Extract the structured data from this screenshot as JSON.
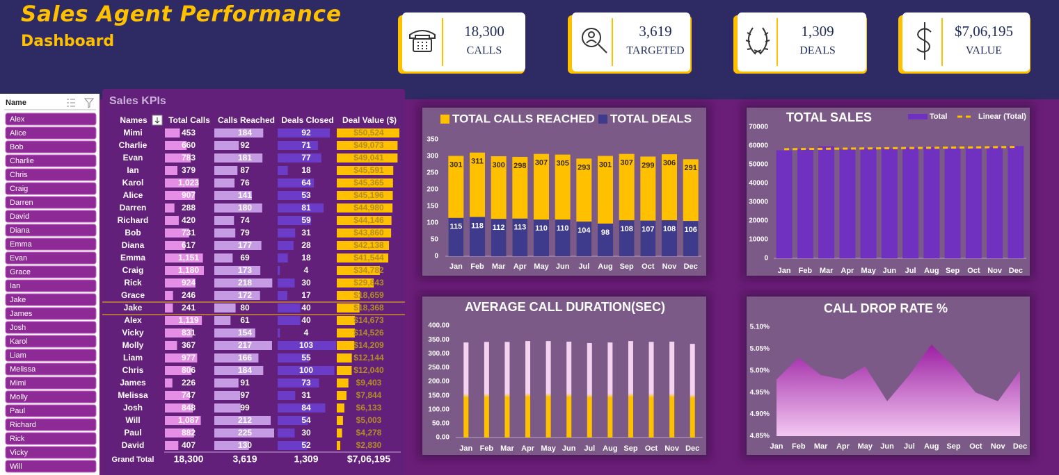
{
  "header": {
    "title": "Sales Agent Performance",
    "subtitle": "Dashboard"
  },
  "kpis": [
    {
      "value": "18,300",
      "label": "CALLS"
    },
    {
      "value": "3,619",
      "label": "TARGETED"
    },
    {
      "value": "1,309",
      "label": "DEALS"
    },
    {
      "value": "$7,06,195",
      "label": "VALUE"
    }
  ],
  "slicer": {
    "title": "Name",
    "items": [
      "Alex",
      "Alice",
      "Bob",
      "Charlie",
      "Chris",
      "Craig",
      "Darren",
      "David",
      "Diana",
      "Emma",
      "Evan",
      "Grace",
      "Ian",
      "Jake",
      "James",
      "Josh",
      "Karol",
      "Liam",
      "Melissa",
      "Mimi",
      "Molly",
      "Paul",
      "Richard",
      "Rick",
      "Vicky",
      "Will"
    ]
  },
  "table": {
    "title": "Sales KPIs",
    "columns": [
      "Names",
      "Total Calls",
      "Calls Reached",
      "Deals Closed",
      "Deal Value ($)"
    ],
    "bar_colors": [
      "#e58ee6",
      "#c59be3",
      "#6b3cc8",
      "#ffc000"
    ],
    "rows": [
      [
        "Mimi",
        453,
        184,
        92,
        {
          "value": 50524,
          "label": "$50,524"
        }
      ],
      [
        "Charlie",
        660,
        92,
        71,
        {
          "value": 49073,
          "label": "$49,073"
        }
      ],
      [
        "Evan",
        783,
        181,
        77,
        {
          "value": 49041,
          "label": "$49,041"
        }
      ],
      [
        "Ian",
        379,
        87,
        18,
        {
          "value": 45591,
          "label": "$45,591"
        }
      ],
      [
        "Karol",
        {
          "value": 1023,
          "label": "1,023"
        },
        76,
        64,
        {
          "value": 45365,
          "label": "$45,365"
        }
      ],
      [
        "Alice",
        907,
        141,
        53,
        {
          "value": 45196,
          "label": "$45,196"
        }
      ],
      [
        "Darren",
        288,
        180,
        81,
        {
          "value": 44980,
          "label": "$44,980"
        }
      ],
      [
        "Richard",
        420,
        74,
        59,
        {
          "value": 44146,
          "label": "$44,146"
        }
      ],
      [
        "Bob",
        731,
        79,
        31,
        {
          "value": 43860,
          "label": "$43,860"
        }
      ],
      [
        "Diana",
        617,
        177,
        28,
        {
          "value": 42138,
          "label": "$42,138"
        }
      ],
      [
        "Emma",
        {
          "value": 1151,
          "label": "1,151"
        },
        69,
        18,
        {
          "value": 41544,
          "label": "$41,544"
        }
      ],
      [
        "Craig",
        {
          "value": 1180,
          "label": "1,180"
        },
        173,
        4,
        {
          "value": 34782,
          "label": "$34,782"
        }
      ],
      [
        "Rick",
        924,
        218,
        30,
        {
          "value": 29843,
          "label": "$29,843"
        }
      ],
      [
        "Grace",
        246,
        172,
        17,
        {
          "value": 18659,
          "label": "$18,659"
        }
      ],
      [
        "Jake",
        241,
        80,
        40,
        {
          "value": 18368,
          "label": "$18,368"
        }
      ],
      [
        "Alex",
        {
          "value": 1119,
          "label": "1,119"
        },
        61,
        40,
        {
          "value": 14673,
          "label": "$14,673"
        }
      ],
      [
        "Vicky",
        831,
        154,
        4,
        {
          "value": 14526,
          "label": "$14,526"
        }
      ],
      [
        "Molly",
        367,
        217,
        103,
        {
          "value": 14209,
          "label": "$14,209"
        }
      ],
      [
        "Liam",
        977,
        166,
        55,
        {
          "value": 12144,
          "label": "$12,144"
        }
      ],
      [
        "Chris",
        806,
        184,
        100,
        {
          "value": 12040,
          "label": "$12,040"
        }
      ],
      [
        "James",
        226,
        91,
        73,
        {
          "value": 9403,
          "label": "$9,403"
        }
      ],
      [
        "Melissa",
        747,
        97,
        31,
        {
          "value": 7844,
          "label": "$7,844"
        }
      ],
      [
        "Josh",
        848,
        99,
        84,
        {
          "value": 6133,
          "label": "$6,133"
        }
      ],
      [
        "Will",
        {
          "value": 1087,
          "label": "1,087"
        },
        212,
        54,
        {
          "value": 5003,
          "label": "$5,003"
        }
      ],
      [
        "Paul",
        882,
        225,
        30,
        {
          "value": 4278,
          "label": "$4,278"
        }
      ],
      [
        "David",
        407,
        130,
        52,
        {
          "value": 2830,
          "label": "$2,830"
        }
      ]
    ],
    "totals": [
      "Grand Total",
      "18,300",
      "3,619",
      "1,309",
      "$7,06,195"
    ]
  },
  "chart_data": [
    {
      "type": "bar",
      "barmode": "overlay",
      "data_labels": true,
      "categories": [
        "Jan",
        "Feb",
        "Mar",
        "Apr",
        "May",
        "Jun",
        "Jul",
        "Aug",
        "Sep",
        "Oct",
        "Nov",
        "Dec"
      ],
      "series": [
        {
          "name": "TOTAL CALLS REACHED",
          "color": "#ffc000",
          "values": [
            301,
            311,
            300,
            298,
            307,
            305,
            293,
            301,
            307,
            299,
            306,
            291
          ]
        },
        {
          "name": "TOTAL DEALS",
          "color": "#3e3a8c",
          "values": [
            115,
            118,
            112,
            113,
            110,
            110,
            104,
            98,
            108,
            107,
            108,
            106
          ]
        }
      ],
      "ylim": [
        0,
        350
      ],
      "yticks": [
        0,
        50,
        100,
        150,
        200,
        250,
        300,
        350
      ]
    },
    {
      "type": "bar",
      "title": "TOTAL SALES",
      "categories": [
        "Jan",
        "Feb",
        "Mar",
        "Apr",
        "May",
        "Jun",
        "Jul",
        "Aug",
        "Sep",
        "Oct",
        "Nov",
        "Dec"
      ],
      "series": [
        {
          "name": "Total",
          "color": "#7030c0",
          "values": [
            57600,
            58200,
            59800,
            58100,
            58700,
            58500,
            59100,
            59200,
            58600,
            58500,
            59300,
            59900
          ]
        }
      ],
      "trendline": {
        "name": "Linear (Total)",
        "type": "linear",
        "color": "#ffc000"
      },
      "ylim": [
        0,
        70000
      ],
      "yticks": [
        0,
        10000,
        20000,
        30000,
        40000,
        50000,
        60000,
        70000
      ]
    },
    {
      "type": "bar",
      "title": "AVERAGE CALL DURATION(SEC)",
      "categories": [
        "Jan",
        "Feb",
        "Mar",
        "Apr",
        "May",
        "Jun",
        "Jul",
        "Aug",
        "Sep",
        "Oct",
        "Nov",
        "Dec"
      ],
      "gradient": [
        "#ffc000",
        "#f3d3ef"
      ],
      "values": [
        340,
        342,
        342,
        345,
        345,
        343,
        338,
        340,
        345,
        342,
        343,
        335
      ],
      "ylim": [
        0,
        400
      ],
      "yticks": [
        {
          "value": 0,
          "label": "0.00"
        },
        {
          "value": 50,
          "label": "50.00"
        },
        {
          "value": 100,
          "label": "100.00"
        },
        {
          "value": 150,
          "label": "150.00"
        },
        {
          "value": 200,
          "label": "200.00"
        },
        {
          "value": 250,
          "label": "250.00"
        },
        {
          "value": 300,
          "label": "300.00"
        },
        {
          "value": 350,
          "label": "350.00"
        },
        {
          "value": 400,
          "label": "400.00"
        }
      ]
    },
    {
      "type": "area",
      "title": "CALL DROP RATE %",
      "categories": [
        "Jan",
        "Feb",
        "Mar",
        "Apr",
        "May",
        "Jun",
        "Jul",
        "Aug",
        "Sep",
        "Oct",
        "Nov",
        "Dec"
      ],
      "gradient": [
        "#f3c8f2",
        "#9c1fa3"
      ],
      "values": [
        4.98,
        5.03,
        4.99,
        4.98,
        5.01,
        4.93,
        4.99,
        5.06,
        5.01,
        4.95,
        4.93,
        5.0
      ],
      "ylim": [
        4.85,
        5.1
      ],
      "yticks": [
        {
          "value": 4.85,
          "label": "4.85%"
        },
        {
          "value": 4.9,
          "label": "4.90%"
        },
        {
          "value": 4.95,
          "label": "4.95%"
        },
        {
          "value": 5.0,
          "label": "5.00%"
        },
        {
          "value": 5.05,
          "label": "5.05%"
        },
        {
          "value": 5.1,
          "label": "5.10%"
        }
      ]
    }
  ]
}
